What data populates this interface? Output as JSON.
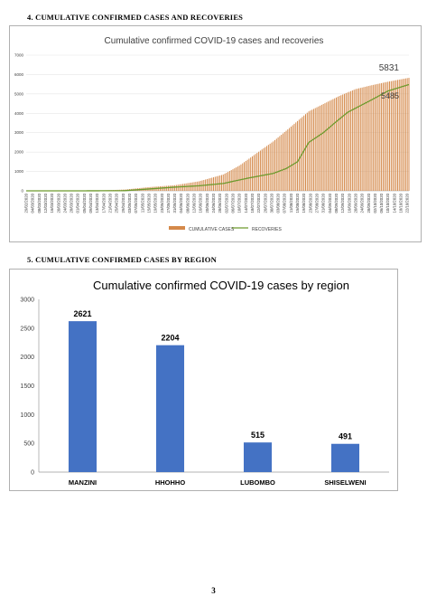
{
  "page": {
    "number": "3"
  },
  "sections": [
    {
      "label": "4.  CUMULATIVE CONFIRMED CASES AND RECOVERIES"
    },
    {
      "label": "5.  CUMULATIVE CONFIRMED CASES BY REGION"
    }
  ],
  "colors": {
    "cases": "#d4894a",
    "recoveries": "#6e9a2e",
    "region_bar": "#4472c4",
    "frame": "#b0b0b0"
  },
  "chart_data": [
    {
      "type": "bar",
      "title": "Cumulative confirmed COVID-19 cases and recoveries",
      "xlabel": "",
      "ylabel": "",
      "ylim": [
        0,
        7000
      ],
      "yticks": [
        "0",
        "1000",
        "2000",
        "3000",
        "4000",
        "5000",
        "6000",
        "7000"
      ],
      "x_range": [
        "29/02/2020",
        "23/10/2020"
      ],
      "x_tick_interval_days": 4,
      "annotations": [
        "5831",
        "5485"
      ],
      "grid": true,
      "legend_position": "bottom-center",
      "series": [
        {
          "name": "CUMULATIVE CASES",
          "type": "bar",
          "points": [
            [
              "29/02/2020",
              0
            ],
            [
              "31/03/2020",
              9
            ],
            [
              "15/04/2020",
              20
            ],
            [
              "30/04/2020",
              65
            ],
            [
              "15/05/2020",
              190
            ],
            [
              "31/05/2020",
              290
            ],
            [
              "15/06/2020",
              490
            ],
            [
              "30/06/2020",
              840
            ],
            [
              "10/07/2020",
              1300
            ],
            [
              "20/07/2020",
              1900
            ],
            [
              "31/07/2020",
              2550
            ],
            [
              "08/08/2020",
              3100
            ],
            [
              "15/08/2020",
              3600
            ],
            [
              "22/08/2020",
              4100
            ],
            [
              "31/08/2020",
              4480
            ],
            [
              "10/09/2020",
              4900
            ],
            [
              "20/09/2020",
              5250
            ],
            [
              "30/09/2020",
              5450
            ],
            [
              "10/10/2020",
              5630
            ],
            [
              "23/10/2020",
              5831
            ]
          ]
        },
        {
          "name": "RECOVERIES",
          "type": "line",
          "points": [
            [
              "29/02/2020",
              0
            ],
            [
              "31/03/2020",
              0
            ],
            [
              "30/04/2020",
              8
            ],
            [
              "31/05/2020",
              190
            ],
            [
              "15/06/2020",
              260
            ],
            [
              "30/06/2020",
              380
            ],
            [
              "15/07/2020",
              650
            ],
            [
              "31/07/2020",
              900
            ],
            [
              "08/08/2020",
              1150
            ],
            [
              "15/08/2020",
              1500
            ],
            [
              "22/08/2020",
              2500
            ],
            [
              "31/08/2020",
              3000
            ],
            [
              "07/09/2020",
              3500
            ],
            [
              "15/09/2020",
              4050
            ],
            [
              "30/09/2020",
              4700
            ],
            [
              "10/10/2020",
              5150
            ],
            [
              "23/10/2020",
              5485
            ]
          ]
        }
      ]
    },
    {
      "type": "bar",
      "title": "Cumulative confirmed COVID-19 cases by region",
      "xlabel": "",
      "ylabel": "",
      "ylim": [
        0,
        3000
      ],
      "yticks": [
        "0",
        "500",
        "1000",
        "1500",
        "2000",
        "2500",
        "3000"
      ],
      "grid": false,
      "categories": [
        "MANZINI",
        "HHOHHO",
        "LUBOMBO",
        "SHISELWENI"
      ],
      "values": [
        2621,
        2204,
        515,
        491
      ],
      "data_labels": [
        "2621",
        "2204",
        "515",
        "491"
      ]
    }
  ]
}
